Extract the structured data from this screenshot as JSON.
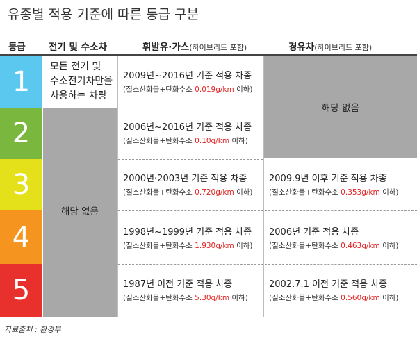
{
  "title": "유종별 적용 기준에 따른 등급 구분",
  "headers": {
    "grade": "등급",
    "ev": "전기 및 수소차",
    "gas": "휘발유·가스",
    "gas_sub": "(하이브리드 포함)",
    "diesel": "경유차",
    "diesel_sub": "(하이브리드 포함)"
  },
  "grades": [
    {
      "label": "1",
      "color": "#5bc8f0"
    },
    {
      "label": "2",
      "color": "#7ab73e"
    },
    {
      "label": "3",
      "color": "#e4e01a"
    },
    {
      "label": "4",
      "color": "#f5951f"
    },
    {
      "label": "5",
      "color": "#e8302d"
    }
  ],
  "ev_grade1": [
    "모든 전기 및",
    "수소전기차만을",
    "사용하는 차량"
  ],
  "ev_other": "해당 없음",
  "gas": [
    {
      "years": "2009년~2016년",
      "rest": " 기준 적용 차종",
      "note_pre": "(질소산화물+탄화수소 ",
      "value": "0.019g/km",
      "note_post": " 이하)"
    },
    {
      "years": "2006년~2016년",
      "rest": " 기준 적용 차종",
      "note_pre": "(질소산화물+탄화수소 ",
      "value": "0.10g/km",
      "note_post": " 이하)"
    },
    {
      "years": "2000년·2003년",
      "rest": " 기준 적용 차종",
      "note_pre": "(질소산화물+탄화수소 ",
      "value": "0.720g/km",
      "note_post": " 이하)"
    },
    {
      "years": "1998년~1999년",
      "rest": " 기준 적용 차종",
      "note_pre": "(질소산화물+탄화수소 ",
      "value": "1.930g/km",
      "note_post": " 이하)"
    },
    {
      "years": "1987년 이전",
      "rest": " 기준 적용 차종",
      "note_pre": "(질소산화물+탄화수소 ",
      "value": "5.30g/km",
      "note_post": " 이하)"
    }
  ],
  "diesel_none": "해당 없음",
  "diesel": [
    {
      "years": "2009.9년 이후",
      "rest": " 기준 적용 차종",
      "note_pre": "(질소산화물+탄화수소 ",
      "value": "0.353g/km",
      "note_post": " 이하)"
    },
    {
      "years": "2006년",
      "rest": " 기준 적용 차종",
      "note_pre": "(질소산화물+탄화수소 ",
      "value": "0.463g/km",
      "note_post": " 이하)"
    },
    {
      "years": "2002.7.1 이전",
      "rest": " 기준 적용 차종",
      "note_pre": "(질소산화물+탄화수소 ",
      "value": "0.560g/km",
      "note_post": " 이하)"
    }
  ],
  "source": "자료출처 : 환경부"
}
